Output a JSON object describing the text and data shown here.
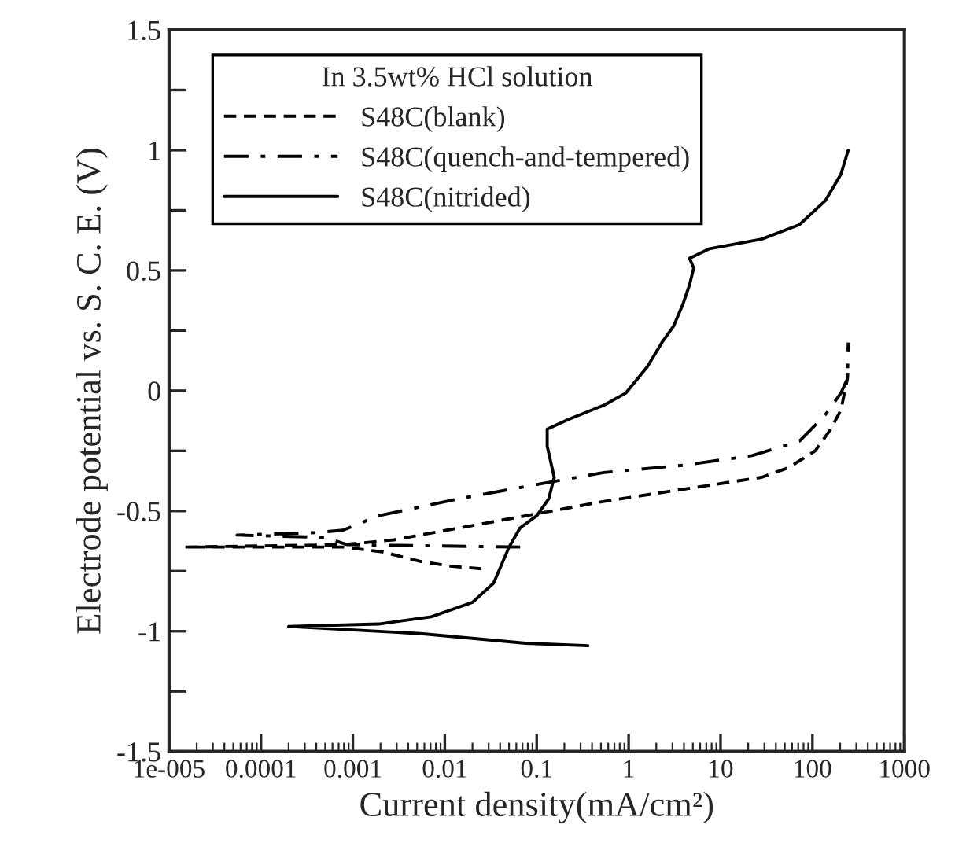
{
  "chart_data": {
    "type": "line",
    "xlabel": "Current density(mA/cm²)",
    "ylabel": "Electrode potential vs. S. C. E. (V)",
    "legend_title": "In 3.5wt% HCl solution",
    "legend": "top left",
    "grid": false,
    "log": "x",
    "xlim": [
      1e-05,
      1000
    ],
    "xticks": [
      {
        "value": 1e-05,
        "label": "1e-005"
      },
      0.0001,
      0.001,
      0.01,
      0.1,
      1,
      10,
      100,
      1000
    ],
    "ylim": [
      -1.5,
      1.5
    ],
    "yticks": [
      -1.5,
      {
        "value": -1.25,
        "label": null
      },
      -1,
      {
        "value": -0.75,
        "label": null
      },
      -0.5,
      {
        "value": -0.25,
        "label": null
      },
      0,
      {
        "value": 0.25,
        "label": null
      },
      0.5,
      {
        "value": 0.75,
        "label": null
      },
      1,
      {
        "value": 1.25,
        "label": null
      },
      1.5
    ],
    "series": [
      {
        "name": "S48C(blank)",
        "color": "#000000",
        "line_style": "dashed",
        "x": [
          0.025,
          0.012,
          0.0055,
          0.0021,
          0.00078,
          1.5e-05,
          0.00078,
          0.0028,
          0.0105,
          0.076,
          0.54,
          3.9,
          28,
          55,
          107,
          158,
          204,
          240,
          245
        ],
        "values": [
          -0.74,
          -0.73,
          -0.71,
          -0.67,
          -0.65,
          -0.65,
          -0.64,
          -0.62,
          -0.58,
          -0.52,
          -0.46,
          -0.41,
          -0.36,
          -0.32,
          -0.25,
          -0.16,
          -0.08,
          0.05,
          0.1
        ]
      },
      {
        "name": "S48C(quench-and-tempered)",
        "color": "#000000",
        "line_style": "dashdot",
        "x": [
          0.066,
          0.00087,
          0.0005,
          5.5e-05,
          0.0004,
          0.00078,
          0.0019,
          0.0138,
          0.1,
          0.54,
          3.9,
          22,
          72,
          138,
          204,
          240,
          245
        ],
        "values": [
          -0.65,
          -0.64,
          -0.61,
          -0.6,
          -0.59,
          -0.58,
          -0.52,
          -0.45,
          -0.39,
          -0.34,
          -0.31,
          -0.27,
          -0.21,
          -0.1,
          -0.01,
          0.05,
          0.2
        ]
      },
      {
        "name": "S48C(nitrided)",
        "color": "#000000",
        "line_style": "solid",
        "x": [
          0.36,
          0.076,
          0.0055,
          0.0002,
          0.0019,
          0.0071,
          0.02,
          0.034,
          0.05,
          0.066,
          0.1,
          0.135,
          0.155,
          0.13,
          0.13,
          0.22,
          0.54,
          0.93,
          1.6,
          2.3,
          3.1,
          3.9,
          4.6,
          5.1,
          4.6,
          7.6,
          28,
          72,
          138,
          204,
          245
        ],
        "values": [
          -1.06,
          -1.05,
          -1.01,
          -0.98,
          -0.97,
          -0.94,
          -0.88,
          -0.8,
          -0.65,
          -0.57,
          -0.52,
          -0.45,
          -0.36,
          -0.23,
          -0.16,
          -0.12,
          -0.06,
          -0.01,
          0.1,
          0.2,
          0.27,
          0.36,
          0.44,
          0.51,
          0.55,
          0.59,
          0.63,
          0.69,
          0.79,
          0.9,
          1.0
        ]
      }
    ]
  }
}
